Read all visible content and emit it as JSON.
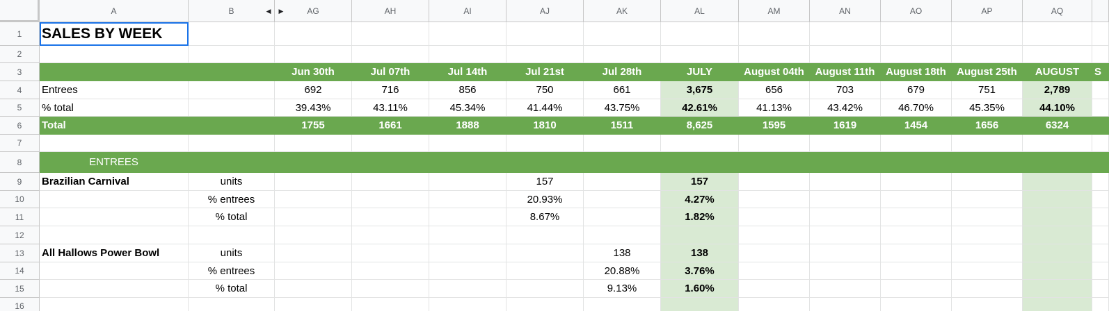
{
  "columns": [
    {
      "key": "A",
      "label": "A"
    },
    {
      "key": "B",
      "label": "B"
    },
    {
      "key": "AG",
      "label": "AG"
    },
    {
      "key": "AH",
      "label": "AH"
    },
    {
      "key": "AI",
      "label": "AI"
    },
    {
      "key": "AJ",
      "label": "AJ"
    },
    {
      "key": "AK",
      "label": "AK"
    },
    {
      "key": "AL",
      "label": "AL"
    },
    {
      "key": "AM",
      "label": "AM"
    },
    {
      "key": "AN",
      "label": "AN"
    },
    {
      "key": "AO",
      "label": "AO"
    },
    {
      "key": "AP",
      "label": "AP"
    },
    {
      "key": "AQ",
      "label": "AQ"
    }
  ],
  "hidden_columns_arrows": {
    "left": "◀",
    "right": "▶"
  },
  "rows": [
    {
      "num": "1",
      "kind": "title",
      "cells": [
        "SALES BY WEEK",
        "",
        "",
        "",
        "",
        "",
        "",
        "",
        "",
        "",
        "",
        "",
        ""
      ]
    },
    {
      "num": "2",
      "kind": "blank",
      "cells": [
        "",
        "",
        "",
        "",
        "",
        "",
        "",
        "",
        "",
        "",
        "",
        "",
        ""
      ]
    },
    {
      "num": "3",
      "kind": "green",
      "cells": [
        "",
        "",
        "Jun 30th",
        "Jul 07th",
        "Jul 14th",
        "Jul 21st",
        "Jul 28th",
        "JULY",
        "August 04th",
        "August 11th",
        "August 18th",
        "August 25th",
        "AUGUST"
      ],
      "overflow": "S"
    },
    {
      "num": "4",
      "kind": "data",
      "cells": [
        "Entrees",
        "",
        "692",
        "716",
        "856",
        "750",
        "661",
        "3,675",
        "656",
        "703",
        "679",
        "751",
        "2,789"
      ]
    },
    {
      "num": "5",
      "kind": "data",
      "cells": [
        "% total",
        "",
        "39.43%",
        "43.11%",
        "45.34%",
        "41.44%",
        "43.75%",
        "42.61%",
        "41.13%",
        "43.42%",
        "46.70%",
        "45.35%",
        "44.10%"
      ]
    },
    {
      "num": "6",
      "kind": "green",
      "cells": [
        "Total",
        "",
        "1755",
        "1661",
        "1888",
        "1810",
        "1511",
        "8,625",
        "1595",
        "1619",
        "1454",
        "1656",
        "6324"
      ]
    },
    {
      "num": "7",
      "kind": "blank",
      "cells": [
        "",
        "",
        "",
        "",
        "",
        "",
        "",
        "",
        "",
        "",
        "",
        "",
        ""
      ]
    },
    {
      "num": "8",
      "kind": "section",
      "cells": [
        "ENTREES",
        "",
        "",
        "",
        "",
        "",
        "",
        "",
        "",
        "",
        "",
        "",
        ""
      ]
    },
    {
      "num": "9",
      "kind": "item",
      "cells": [
        "Brazilian Carnival",
        "units",
        "",
        "",
        "",
        "157",
        "",
        "157",
        "",
        "",
        "",
        "",
        ""
      ]
    },
    {
      "num": "10",
      "kind": "item",
      "cells": [
        "",
        "% entrees",
        "",
        "",
        "",
        "20.93%",
        "",
        "4.27%",
        "",
        "",
        "",
        "",
        ""
      ]
    },
    {
      "num": "11",
      "kind": "item",
      "cells": [
        "",
        "% total",
        "",
        "",
        "",
        "8.67%",
        "",
        "1.82%",
        "",
        "",
        "",
        "",
        ""
      ]
    },
    {
      "num": "12",
      "kind": "item",
      "cells": [
        "",
        "",
        "",
        "",
        "",
        "",
        "",
        "",
        "",
        "",
        "",
        "",
        ""
      ]
    },
    {
      "num": "13",
      "kind": "item",
      "cells": [
        "All Hallows Power Bowl",
        "units",
        "",
        "",
        "",
        "",
        "138",
        "138",
        "",
        "",
        "",
        "",
        ""
      ]
    },
    {
      "num": "14",
      "kind": "item",
      "cells": [
        "",
        "% entrees",
        "",
        "",
        "",
        "",
        "20.88%",
        "3.76%",
        "",
        "",
        "",
        "",
        ""
      ]
    },
    {
      "num": "15",
      "kind": "item",
      "cells": [
        "",
        "% total",
        "",
        "",
        "",
        "",
        "9.13%",
        "1.60%",
        "",
        "",
        "",
        "",
        ""
      ]
    },
    {
      "num": "16",
      "kind": "item",
      "cells": [
        "",
        "",
        "",
        "",
        "",
        "",
        "",
        "",
        "",
        "",
        "",
        "",
        ""
      ]
    }
  ]
}
